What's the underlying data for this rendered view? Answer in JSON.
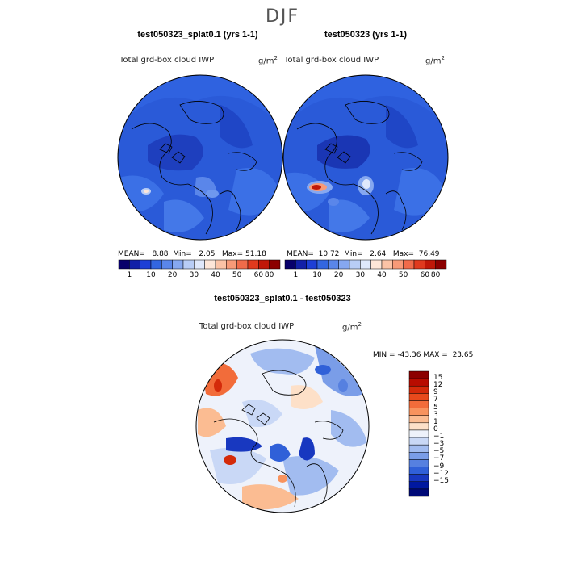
{
  "title": "DJF",
  "panels": [
    {
      "title": "test050323_splat0.1 (yrs 1-1)",
      "variable": "Total grd-box cloud IWP",
      "units_base": "g/m",
      "units_exp": "2",
      "mean_label": "MEAN=",
      "mean": "8.88",
      "min_label": "Min=",
      "min": "2.05",
      "max_label": "Max=",
      "max": "51.18"
    },
    {
      "title": "test050323 (yrs 1-1)",
      "variable": "Total grd-box cloud IWP",
      "units_base": "g/m",
      "units_exp": "2",
      "mean_label": "MEAN=",
      "mean": "10.72",
      "min_label": "Min=",
      "min": "2.64",
      "max_label": "Max=",
      "max": "76.49"
    }
  ],
  "abs_colorbar": {
    "colors": [
      "#08006b",
      "#1220a8",
      "#1d3fd6",
      "#3366e0",
      "#5a86ea",
      "#86a8f0",
      "#b8cdf6",
      "#dfe8fb",
      "#fde6d8",
      "#fbc3a6",
      "#f79a78",
      "#f06b4a",
      "#e03a1e",
      "#c01808",
      "#8c0000"
    ],
    "tick_labels": [
      "1",
      "10",
      "20",
      "30",
      "40",
      "50",
      "60",
      "80"
    ]
  },
  "diff_panel": {
    "title": "test050323_splat0.1 - test050323",
    "variable": "Total grd-box cloud IWP",
    "units_base": "g/m",
    "units_exp": "2",
    "min_label": "MIN =",
    "min": "-43.36",
    "max_label": "MAX =",
    "max": "23.65"
  },
  "diff_colorbar": {
    "colors": [
      "#8c0000",
      "#b80c00",
      "#d42a0a",
      "#e84a1c",
      "#f26c3a",
      "#f8935e",
      "#fbbc92",
      "#fde0c8",
      "#eef2fb",
      "#c9d8f6",
      "#a2bcf0",
      "#7a9de8",
      "#5680e0",
      "#3060d8",
      "#1838c0",
      "#0018a0",
      "#000a78"
    ],
    "tick_labels": [
      "15",
      "12",
      "9",
      "7",
      "5",
      "3",
      "1",
      "0",
      "-1",
      "-3",
      "-5",
      "-7",
      "-9",
      "-12",
      "-15"
    ]
  }
}
